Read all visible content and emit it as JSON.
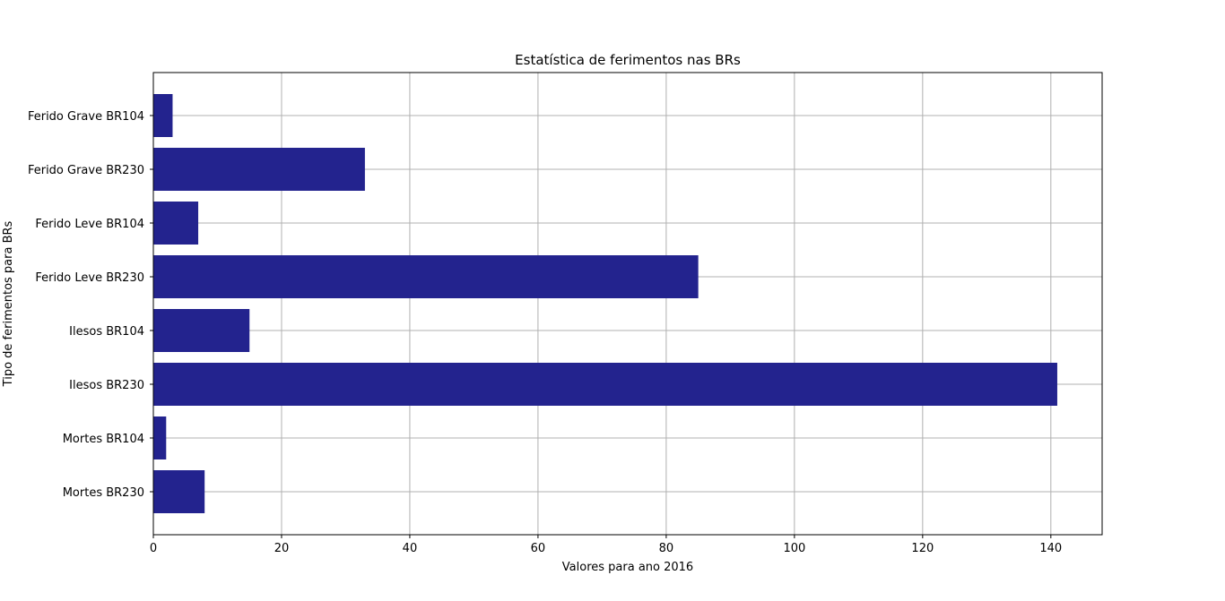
{
  "chart_data": {
    "type": "bar",
    "orientation": "horizontal",
    "title": "Estatística de ferimentos nas BRs",
    "xlabel": "Valores para ano 2016",
    "ylabel": "Tipo de ferimentos para BRs",
    "categories": [
      "Mortes BR230",
      "Mortes BR104",
      "Ilesos BR230",
      "Ilesos BR104",
      "Ferido Leve BR230",
      "Ferido Leve BR104",
      "Ferido Grave BR230",
      "Ferido Grave BR104"
    ],
    "values": [
      8,
      2,
      141,
      15,
      85,
      7,
      33,
      3
    ],
    "xlim": [
      0,
      148
    ],
    "xticks": [
      0,
      20,
      40,
      60,
      80,
      100,
      120,
      140
    ],
    "grid": true,
    "legend": "none",
    "bar_color": "#23238e",
    "grid_color": "#b0b0b0"
  }
}
